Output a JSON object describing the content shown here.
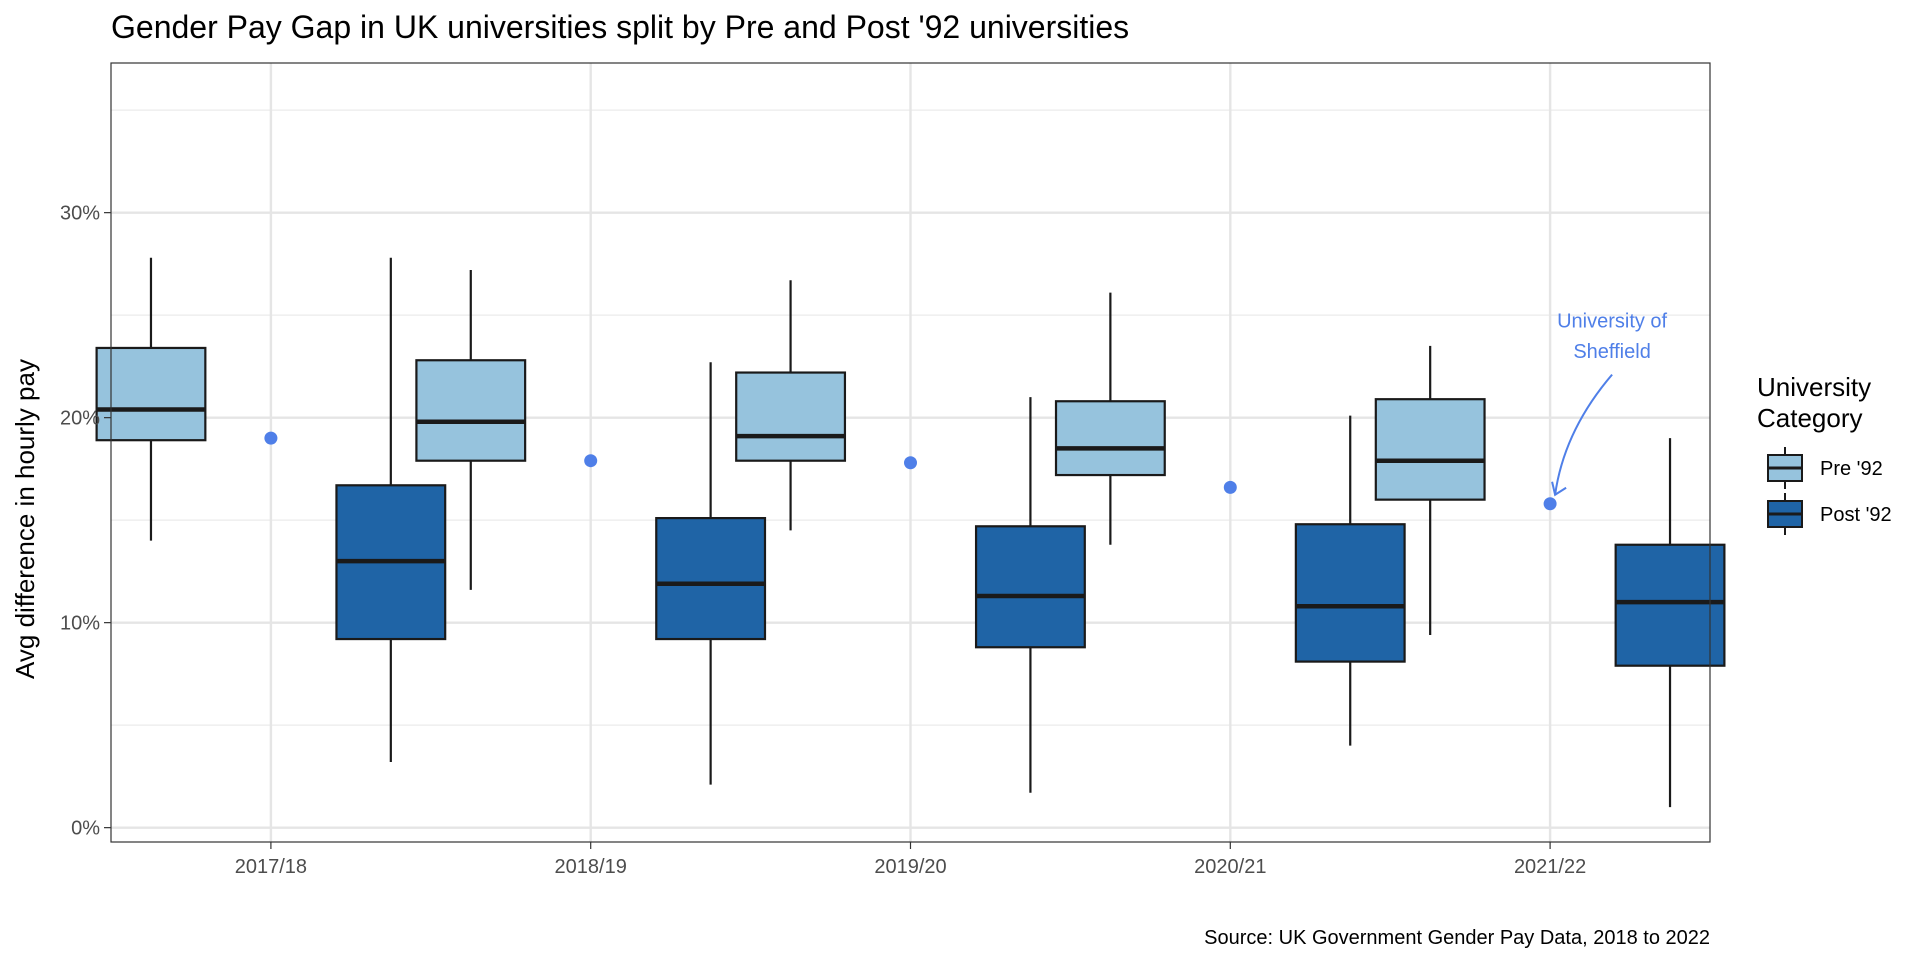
{
  "chart_data": {
    "type": "boxplot",
    "title": "Gender Pay Gap in UK universities split by Pre and Post '92 universities",
    "xlabel": "",
    "ylabel": "Avg difference in hourly pay",
    "caption": "Source: UK Government Gender Pay Data, 2018 to 2022",
    "categories": [
      "2017/18",
      "2018/19",
      "2019/20",
      "2020/21",
      "2021/22"
    ],
    "ylim": [
      -0.7,
      37.3
    ],
    "yticks": [
      0,
      10,
      20,
      30
    ],
    "ytick_labels": [
      "0%",
      "10%",
      "20%",
      "30%"
    ],
    "grid": true,
    "legend": {
      "title_lines": [
        "University",
        "Category"
      ],
      "position": "right"
    },
    "series": [
      {
        "name": "Pre '92",
        "color": "#96c3dd",
        "boxes": [
          {
            "min": 14.0,
            "q1": 18.9,
            "median": 20.4,
            "q3": 23.4,
            "max": 27.8
          },
          {
            "min": 11.6,
            "q1": 17.9,
            "median": 19.8,
            "q3": 22.8,
            "max": 27.2
          },
          {
            "min": 14.5,
            "q1": 17.9,
            "median": 19.1,
            "q3": 22.2,
            "max": 26.7
          },
          {
            "min": 13.8,
            "q1": 17.2,
            "median": 18.5,
            "q3": 20.8,
            "max": 26.1
          },
          {
            "min": 9.4,
            "q1": 16.0,
            "median": 17.9,
            "q3": 20.9,
            "max": 23.5
          }
        ]
      },
      {
        "name": "Post '92",
        "color": "#1f64a6",
        "boxes": [
          {
            "min": 3.2,
            "q1": 9.2,
            "median": 13.0,
            "q3": 16.7,
            "max": 27.8
          },
          {
            "min": 2.1,
            "q1": 9.2,
            "median": 11.9,
            "q3": 15.1,
            "max": 22.7
          },
          {
            "min": 1.7,
            "q1": 8.8,
            "median": 11.3,
            "q3": 14.7,
            "max": 21.0
          },
          {
            "min": 4.0,
            "q1": 8.1,
            "median": 10.8,
            "q3": 14.8,
            "max": 20.1
          },
          {
            "min": 1.0,
            "q1": 7.9,
            "median": 11.0,
            "q3": 13.8,
            "max": 19.0
          }
        ]
      }
    ],
    "highlight": {
      "color": "#4f7fe8",
      "values": [
        19.0,
        17.9,
        17.8,
        16.6,
        15.8
      ],
      "annotation_lines": [
        "University of",
        "Sheffield"
      ]
    }
  }
}
